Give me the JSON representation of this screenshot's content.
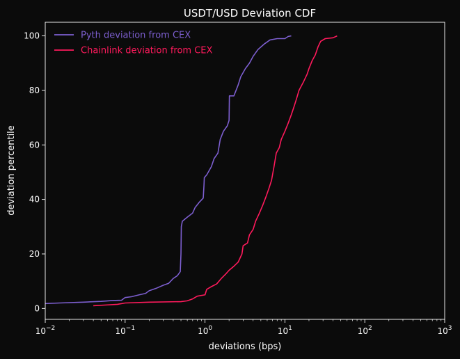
{
  "chart_data": {
    "type": "line",
    "title": "USDT/USD Deviation CDF",
    "xlabel": "deviations (bps)",
    "ylabel": "deviation percentile",
    "xscale": "log",
    "xlim": [
      0.01,
      1000
    ],
    "ylim": [
      -4,
      105
    ],
    "x_ticks": [
      {
        "value": 0.01,
        "base": "10",
        "exp": "−2"
      },
      {
        "value": 0.1,
        "base": "10",
        "exp": "−1"
      },
      {
        "value": 1,
        "base": "10",
        "exp": "0"
      },
      {
        "value": 10,
        "base": "10",
        "exp": "1"
      },
      {
        "value": 100,
        "base": "10",
        "exp": "2"
      },
      {
        "value": 1000,
        "base": "10",
        "exp": "3"
      }
    ],
    "y_ticks": [
      0,
      20,
      40,
      60,
      80,
      100
    ],
    "grid": false,
    "legend_position": "top-left",
    "background": "#0b0b0b",
    "series": [
      {
        "name": "Pyth deviation from CEX",
        "color": "#7d5fd0",
        "points": [
          [
            0.01,
            1.8
          ],
          [
            0.015,
            2.0
          ],
          [
            0.03,
            2.3
          ],
          [
            0.05,
            2.6
          ],
          [
            0.07,
            2.9
          ],
          [
            0.09,
            3.0
          ],
          [
            0.1,
            4.0
          ],
          [
            0.12,
            4.3
          ],
          [
            0.15,
            5.0
          ],
          [
            0.18,
            5.5
          ],
          [
            0.2,
            6.5
          ],
          [
            0.25,
            7.5
          ],
          [
            0.3,
            8.5
          ],
          [
            0.35,
            9.2
          ],
          [
            0.4,
            11.0
          ],
          [
            0.45,
            12.0
          ],
          [
            0.49,
            13.5
          ],
          [
            0.5,
            20.0
          ],
          [
            0.505,
            30.0
          ],
          [
            0.52,
            32.0
          ],
          [
            0.6,
            33.5
          ],
          [
            0.7,
            35.0
          ],
          [
            0.75,
            37.0
          ],
          [
            0.85,
            39.0
          ],
          [
            0.95,
            40.5
          ],
          [
            0.97,
            45.0
          ],
          [
            0.98,
            48.0
          ],
          [
            1.05,
            49.0
          ],
          [
            1.2,
            52.0
          ],
          [
            1.3,
            55.0
          ],
          [
            1.45,
            57.0
          ],
          [
            1.55,
            62.0
          ],
          [
            1.7,
            65.0
          ],
          [
            1.9,
            67.0
          ],
          [
            2.0,
            69.0
          ],
          [
            2.02,
            78.0
          ],
          [
            2.3,
            78.0
          ],
          [
            2.6,
            82.0
          ],
          [
            2.8,
            85.0
          ],
          [
            3.2,
            88.0
          ],
          [
            3.6,
            90.0
          ],
          [
            4.0,
            92.5
          ],
          [
            4.6,
            95.0
          ],
          [
            5.5,
            97.0
          ],
          [
            6.5,
            98.5
          ],
          [
            8.0,
            99.0
          ],
          [
            10.0,
            99.0
          ],
          [
            11.0,
            99.8
          ],
          [
            12.0,
            100.0
          ]
        ]
      },
      {
        "name": "Chainlink deviation from CEX",
        "color": "#ff1a5c",
        "points": [
          [
            0.04,
            1.0
          ],
          [
            0.06,
            1.3
          ],
          [
            0.08,
            1.5
          ],
          [
            0.1,
            2.0
          ],
          [
            0.2,
            2.3
          ],
          [
            0.5,
            2.5
          ],
          [
            0.6,
            2.8
          ],
          [
            0.7,
            3.5
          ],
          [
            0.8,
            4.5
          ],
          [
            1.0,
            5.0
          ],
          [
            1.05,
            7.0
          ],
          [
            1.2,
            8.0
          ],
          [
            1.4,
            9.0
          ],
          [
            1.6,
            11.0
          ],
          [
            1.8,
            12.5
          ],
          [
            2.0,
            14.0
          ],
          [
            2.3,
            15.5
          ],
          [
            2.6,
            17.0
          ],
          [
            2.9,
            20.0
          ],
          [
            3.0,
            23.0
          ],
          [
            3.4,
            24.0
          ],
          [
            3.6,
            27.0
          ],
          [
            4.0,
            29.0
          ],
          [
            4.3,
            32.0
          ],
          [
            4.8,
            35.0
          ],
          [
            5.3,
            38.0
          ],
          [
            5.8,
            41.0
          ],
          [
            6.3,
            44.0
          ],
          [
            6.8,
            47.0
          ],
          [
            7.3,
            52.0
          ],
          [
            7.8,
            57.0
          ],
          [
            8.5,
            59.0
          ],
          [
            9.0,
            62.0
          ],
          [
            10.0,
            65.0
          ],
          [
            11.0,
            68.0
          ],
          [
            12.0,
            71.0
          ],
          [
            13.0,
            74.0
          ],
          [
            14.0,
            77.0
          ],
          [
            15.0,
            80.0
          ],
          [
            17.0,
            83.0
          ],
          [
            19.0,
            86.0
          ],
          [
            20.0,
            88.0
          ],
          [
            22.0,
            91.0
          ],
          [
            24.0,
            93.0
          ],
          [
            26.0,
            96.0
          ],
          [
            28.0,
            98.0
          ],
          [
            32.0,
            99.0
          ],
          [
            40.0,
            99.3
          ],
          [
            45.0,
            100.0
          ]
        ]
      }
    ]
  }
}
